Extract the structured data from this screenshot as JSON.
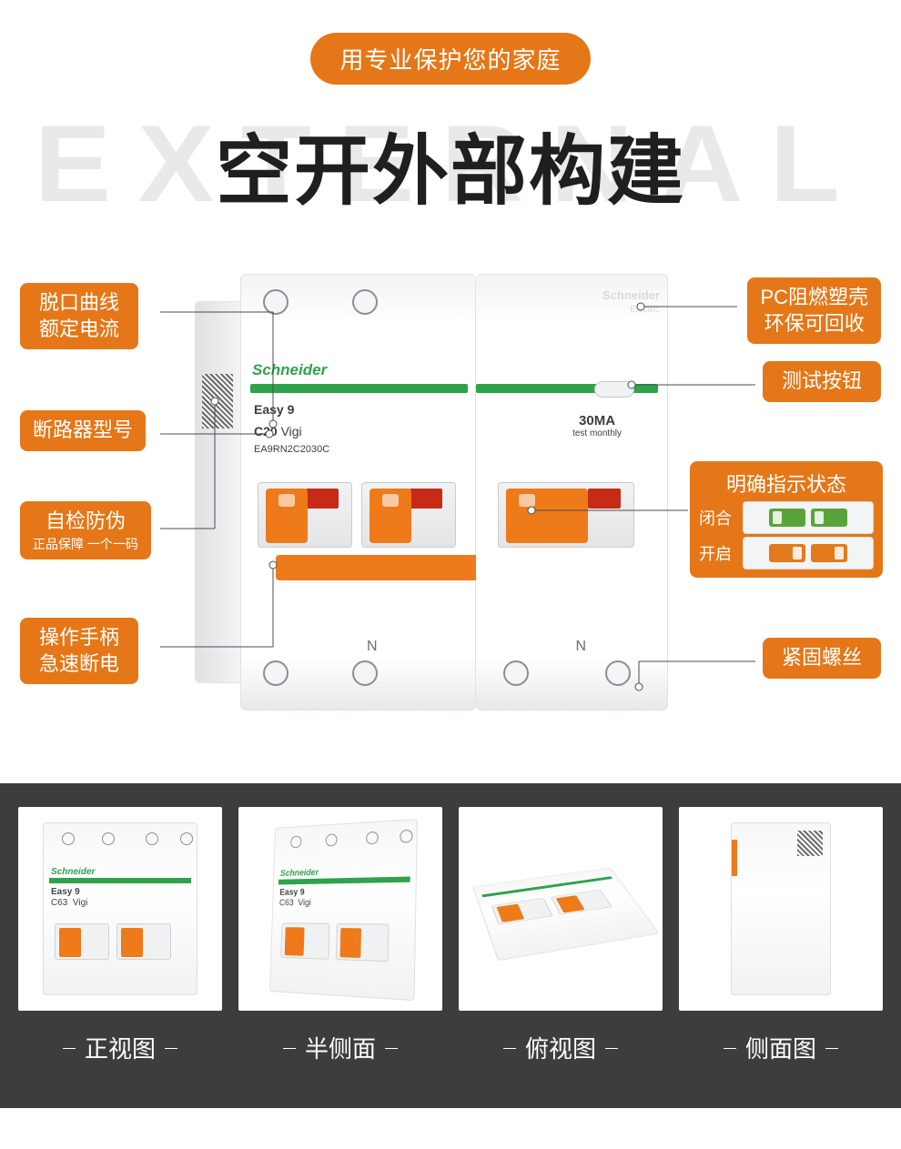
{
  "colors": {
    "accent": "#e57718",
    "accent_light": "#f39a44",
    "text_dark": "#1e1f21",
    "title_shadow": "#e8e9ea",
    "strip_bg": "#3c3d3f",
    "white": "#ffffff",
    "green": "#2fa24c",
    "line": "#4a4c50"
  },
  "header": {
    "pill": "用专业保护您的家庭",
    "title_bg": "EXTERNAL",
    "title_main": "空开外部构建"
  },
  "product": {
    "brand": "Schneider",
    "brand_sub": "Electric",
    "series": "Easy 9",
    "curve": "C20",
    "vigi": "Vigi",
    "model": "EA9RN2C2030C",
    "ma": "30MA",
    "ma_sub": "test monthly",
    "neutral": "N"
  },
  "callouts": {
    "left": [
      {
        "line1": "脱口曲线",
        "line2": "额定电流"
      },
      {
        "line1": "断路器型号"
      },
      {
        "line1": "自检防伪",
        "sub": "正品保障 一个一码"
      },
      {
        "line1": "操作手柄",
        "line2": "急速断电"
      }
    ],
    "right": [
      {
        "line1": "PC阻燃塑壳",
        "line2": "环保可回收"
      },
      {
        "line1": "测试按钮"
      },
      {
        "line1": "紧固螺丝"
      }
    ],
    "status": {
      "title": "明确指示状态",
      "closed": "闭合",
      "open": "开启"
    }
  },
  "views": [
    {
      "caption": "正视图",
      "mode": "front"
    },
    {
      "caption": "半侧面",
      "mode": "angle"
    },
    {
      "caption": "俯视图",
      "mode": "top"
    },
    {
      "caption": "侧面图",
      "mode": "side"
    }
  ]
}
